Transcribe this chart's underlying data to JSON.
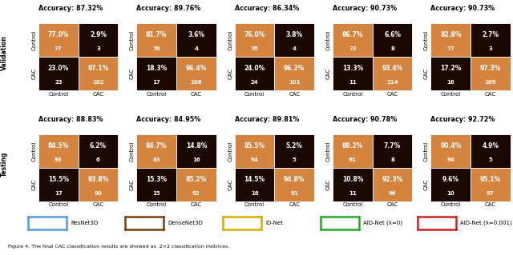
{
  "validation": {
    "accuracies": [
      "87.32%",
      "89.76%",
      "86.34%",
      "90.73%",
      "90.73%"
    ],
    "matrices": [
      {
        "TN_pct": "77.0%",
        "TN_n": "77",
        "FP_pct": "2.9%",
        "FP_n": "3",
        "FN_pct": "23.0%",
        "FN_n": "23",
        "TP_pct": "97.1%",
        "TP_n": "102"
      },
      {
        "TN_pct": "81.7%",
        "TN_n": "76",
        "FP_pct": "3.6%",
        "FP_n": "4",
        "FN_pct": "18.3%",
        "FN_n": "17",
        "TP_pct": "96.4%",
        "TP_n": "108"
      },
      {
        "TN_pct": "76.0%",
        "TN_n": "76",
        "FP_pct": "3.8%",
        "FP_n": "4",
        "FN_pct": "24.0%",
        "FN_n": "24",
        "TP_pct": "96.2%",
        "TP_n": "101"
      },
      {
        "TN_pct": "86.7%",
        "TN_n": "72",
        "FP_pct": "6.6%",
        "FP_n": "8",
        "FN_pct": "13.3%",
        "FN_n": "11",
        "TP_pct": "93.4%",
        "TP_n": "114"
      },
      {
        "TN_pct": "82.8%",
        "TN_n": "77",
        "FP_pct": "2.7%",
        "FP_n": "3",
        "FN_pct": "17.2%",
        "FN_n": "16",
        "TP_pct": "97.3%",
        "TP_n": "109"
      }
    ]
  },
  "testing": {
    "accuracies": [
      "88.83%",
      "84.95%",
      "89.81%",
      "90.78%",
      "92.72%"
    ],
    "matrices": [
      {
        "TN_pct": "84.5%",
        "TN_n": "93",
        "FP_pct": "6.2%",
        "FP_n": "6",
        "FN_pct": "15.5%",
        "FN_n": "17",
        "TP_pct": "93.8%",
        "TP_n": "90"
      },
      {
        "TN_pct": "84.7%",
        "TN_n": "83",
        "FP_pct": "14.8%",
        "FP_n": "16",
        "FN_pct": "15.3%",
        "FN_n": "15",
        "TP_pct": "85.2%",
        "TP_n": "92"
      },
      {
        "TN_pct": "85.5%",
        "TN_n": "94",
        "FP_pct": "5.2%",
        "FP_n": "5",
        "FN_pct": "14.5%",
        "FN_n": "16",
        "TP_pct": "94.8%",
        "TP_n": "91"
      },
      {
        "TN_pct": "89.2%",
        "TN_n": "91",
        "FP_pct": "7.7%",
        "FP_n": "8",
        "FN_pct": "10.8%",
        "FN_n": "11",
        "TP_pct": "92.3%",
        "TP_n": "96"
      },
      {
        "TN_pct": "90.4%",
        "TN_n": "94",
        "FP_pct": "4.9%",
        "FP_n": "5",
        "FN_pct": "9.6%",
        "FN_n": "10",
        "TP_pct": "95.1%",
        "TP_n": "97"
      }
    ]
  },
  "correct_color": "#D4843E",
  "wrong_color": "#1A0800",
  "legend": [
    {
      "label": "ResNet3D",
      "border": "#5599DD"
    },
    {
      "label": "DenseNet3D",
      "border": "#7B3F10"
    },
    {
      "label": "ID-Net",
      "border": "#DDAA00"
    },
    {
      "label": "AID-Net (λ=0)",
      "border": "#22AA22"
    },
    {
      "label": "AID-Net (λ=0.001)",
      "border": "#CC2222"
    }
  ],
  "caption": "Figure 4. The final CAC classification results are showed as  2×2 classification metrices.",
  "row_labels": [
    "Validation",
    "Testing"
  ]
}
